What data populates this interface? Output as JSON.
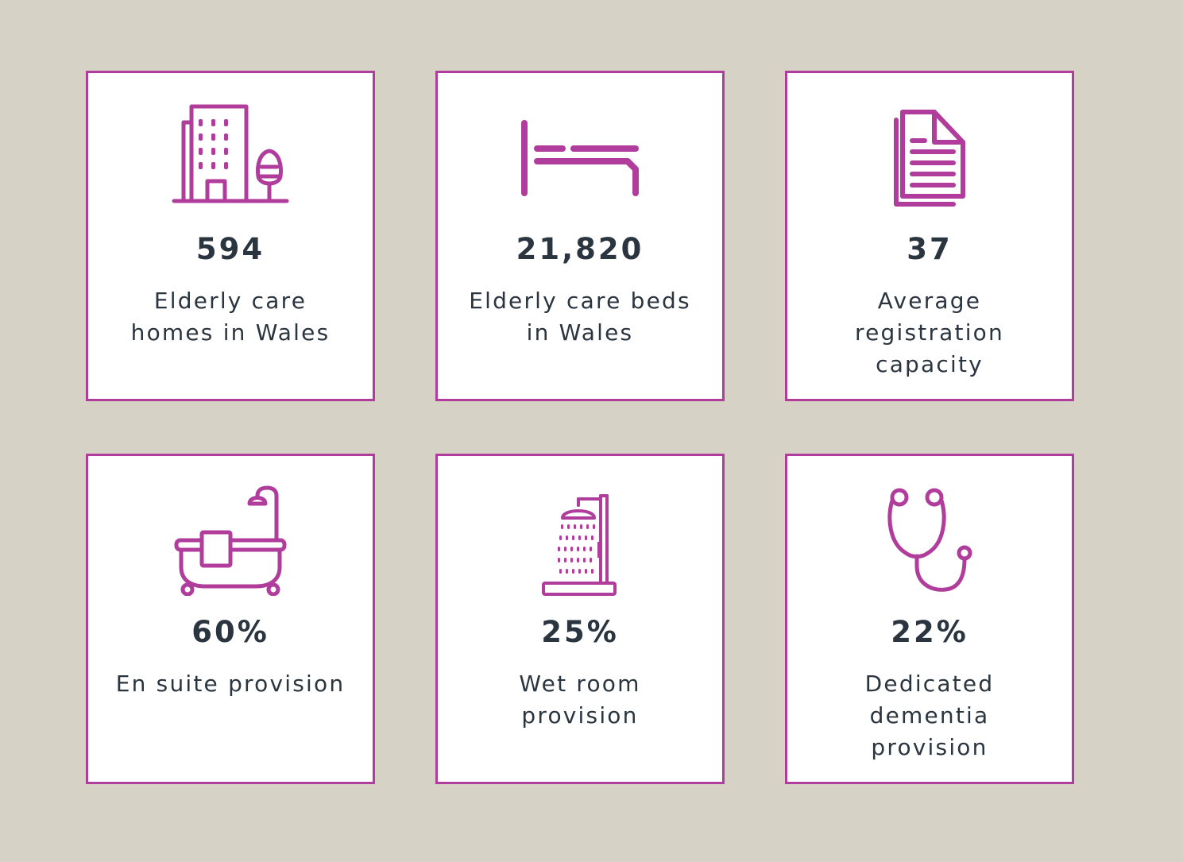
{
  "colors": {
    "background": "#d7d2c6",
    "accent": "#b03c9c",
    "text": "#2b3540"
  },
  "stats": [
    {
      "icon": "care-home-building-icon",
      "value": "594",
      "label_lines": [
        "Elderly care",
        "homes in Wales"
      ]
    },
    {
      "icon": "bed-icon",
      "value": "21,820",
      "label_lines": [
        "Elderly care beds",
        "in Wales"
      ]
    },
    {
      "icon": "document-icon",
      "value": "37",
      "label_lines": [
        "Average",
        "registration",
        "capacity"
      ]
    },
    {
      "icon": "bathtub-icon",
      "value": "60%",
      "label_lines": [
        "En suite provision"
      ]
    },
    {
      "icon": "shower-icon",
      "value": "25%",
      "label_lines": [
        "Wet room",
        "provision"
      ]
    },
    {
      "icon": "stethoscope-icon",
      "value": "22%",
      "label_lines": [
        "Dedicated",
        "dementia",
        "provision"
      ]
    }
  ]
}
